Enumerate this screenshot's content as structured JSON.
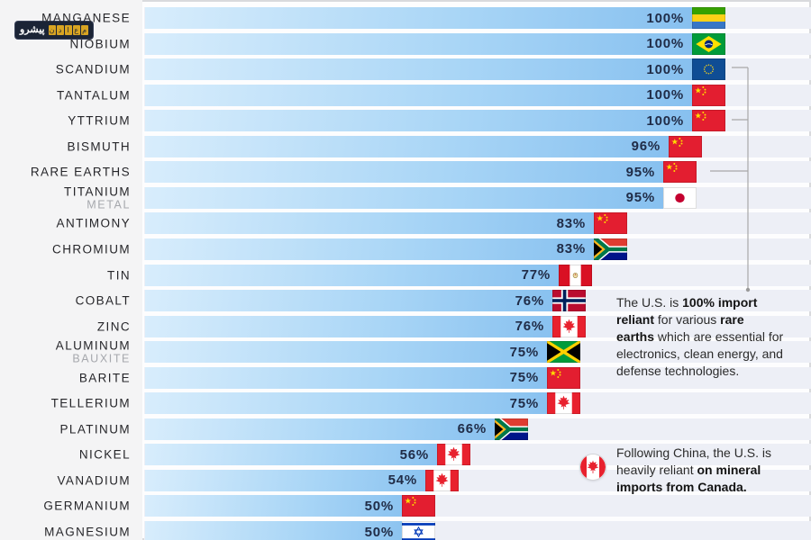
{
  "logo": {
    "primary": "پیشرو",
    "boxes": [
      "م",
      "ع",
      "ا",
      "د",
      "ن"
    ]
  },
  "colors": {
    "bar_gradient_start": "#d8edfc",
    "bar_gradient_end": "#82bdee",
    "track": "#edeff6",
    "label_column_bg": "#f4f4f5",
    "percent_text": "#202c47",
    "bracket": "#a8a8a8"
  },
  "chart_data": {
    "type": "bar",
    "orientation": "horizontal",
    "unit": "% U.S. import reliance",
    "xlim": [
      0,
      100
    ],
    "grid": false,
    "value_labels_inside_bar": true,
    "flag_at_bar_tip": true,
    "rows": [
      {
        "label": "MANGANESE",
        "sublabel": "",
        "value": 100,
        "value_label": "100%",
        "source": "gabon"
      },
      {
        "label": "NIOBIUM",
        "sublabel": "",
        "value": 100,
        "value_label": "100%",
        "source": "brazil"
      },
      {
        "label": "SCANDIUM",
        "sublabel": "",
        "value": 100,
        "value_label": "100%",
        "source": "european-union"
      },
      {
        "label": "TANTALUM",
        "sublabel": "",
        "value": 100,
        "value_label": "100%",
        "source": "china"
      },
      {
        "label": "YTTRIUM",
        "sublabel": "",
        "value": 100,
        "value_label": "100%",
        "source": "china"
      },
      {
        "label": "BISMUTH",
        "sublabel": "",
        "value": 96,
        "value_label": "96%",
        "source": "china"
      },
      {
        "label": "RARE EARTHS",
        "sublabel": "",
        "value": 95,
        "value_label": "95%",
        "source": "china"
      },
      {
        "label": "TITANIUM",
        "sublabel": "METAL",
        "value": 95,
        "value_label": "95%",
        "source": "japan"
      },
      {
        "label": "ANTIMONY",
        "sublabel": "",
        "value": 83,
        "value_label": "83%",
        "source": "china"
      },
      {
        "label": "CHROMIUM",
        "sublabel": "",
        "value": 83,
        "value_label": "83%",
        "source": "south-africa"
      },
      {
        "label": "TIN",
        "sublabel": "",
        "value": 77,
        "value_label": "77%",
        "source": "peru"
      },
      {
        "label": "COBALT",
        "sublabel": "",
        "value": 76,
        "value_label": "76%",
        "source": "norway"
      },
      {
        "label": "ZINC",
        "sublabel": "",
        "value": 76,
        "value_label": "76%",
        "source": "canada"
      },
      {
        "label": "ALUMINUM",
        "sublabel": "BAUXITE",
        "value": 75,
        "value_label": "75%",
        "source": "jamaica"
      },
      {
        "label": "BARITE",
        "sublabel": "",
        "value": 75,
        "value_label": "75%",
        "source": "china"
      },
      {
        "label": "TELLERIUM",
        "sublabel": "",
        "value": 75,
        "value_label": "75%",
        "source": "canada"
      },
      {
        "label": "PLATINUM",
        "sublabel": "",
        "value": 66,
        "value_label": "66%",
        "source": "south-africa"
      },
      {
        "label": "NICKEL",
        "sublabel": "",
        "value": 56,
        "value_label": "56%",
        "source": "canada"
      },
      {
        "label": "VANADIUM",
        "sublabel": "",
        "value": 54,
        "value_label": "54%",
        "source": "canada"
      },
      {
        "label": "GERMANIUM",
        "sublabel": "",
        "value": 50,
        "value_label": "50%",
        "source": "china"
      },
      {
        "label": "MAGNESIUM",
        "sublabel": "",
        "value": 50,
        "value_label": "50%",
        "source": "israel"
      }
    ]
  },
  "annotations": {
    "rare_earths": {
      "bracket_rows": [
        "SCANDIUM",
        "YTTRIUM",
        "RARE EARTHS"
      ],
      "segments": [
        {
          "text": "The U.S. is ",
          "bold": false
        },
        {
          "text": "100% import reliant",
          "bold": true
        },
        {
          "text": " for various ",
          "bold": false
        },
        {
          "text": "rare earths",
          "bold": true
        },
        {
          "text": " which are essential for electronics, clean energy, and defense technologies.",
          "bold": false
        }
      ]
    },
    "canada_note": {
      "icon": "canada-flag-round-icon",
      "segments": [
        {
          "text": "Following China, the U.S. is heavily reliant ",
          "bold": false
        },
        {
          "text": "on mineral imports from Canada.",
          "bold": true
        }
      ]
    }
  }
}
